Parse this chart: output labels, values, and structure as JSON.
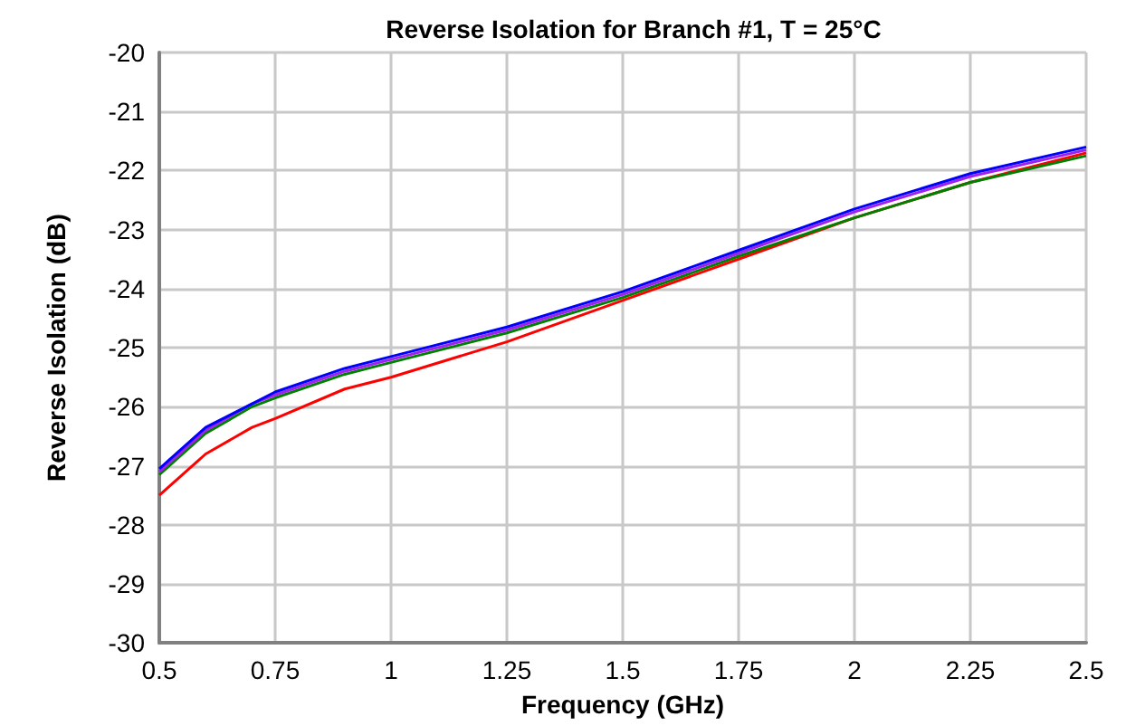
{
  "chart_data": {
    "type": "line",
    "title": "Reverse Isolation for Branch #1, T = 25°C",
    "xlabel": "Frequency (GHz)",
    "ylabel": "Reverse Isolation (dB)",
    "x": [
      0.5,
      0.6,
      0.7,
      0.75,
      0.9,
      1.0,
      1.25,
      1.5,
      1.75,
      2.0,
      2.25,
      2.5
    ],
    "series": [
      {
        "color": "#ff0000",
        "values": [
          -27.5,
          -26.8,
          -26.35,
          -26.2,
          -25.7,
          -25.5,
          -24.9,
          -24.2,
          -23.5,
          -22.8,
          -22.2,
          -21.7
        ]
      },
      {
        "color": "#008000",
        "values": [
          -27.15,
          -26.45,
          -26.0,
          -25.85,
          -25.45,
          -25.25,
          -24.75,
          -24.15,
          -23.45,
          -22.8,
          -22.2,
          -21.75
        ]
      },
      {
        "color": "#a020f0",
        "values": [
          -27.1,
          -26.4,
          -25.95,
          -25.8,
          -25.4,
          -25.2,
          -24.7,
          -24.1,
          -23.4,
          -22.7,
          -22.1,
          -21.65
        ]
      },
      {
        "color": "#0000ff",
        "values": [
          -27.05,
          -26.35,
          -25.95,
          -25.75,
          -25.35,
          -25.15,
          -24.65,
          -24.05,
          -23.35,
          -22.65,
          -22.05,
          -21.6
        ]
      }
    ],
    "xlim": [
      0.5,
      2.5
    ],
    "xticks": [
      0.5,
      0.75,
      1,
      1.25,
      1.5,
      1.75,
      2,
      2.25,
      2.5
    ],
    "ylim": [
      -30,
      -20
    ],
    "yticks": [
      -30,
      -29,
      -28,
      -27,
      -26,
      -25,
      -24,
      -23,
      -22,
      -21,
      -20
    ],
    "grid": true,
    "marker": "none",
    "line_style": "solid"
  }
}
